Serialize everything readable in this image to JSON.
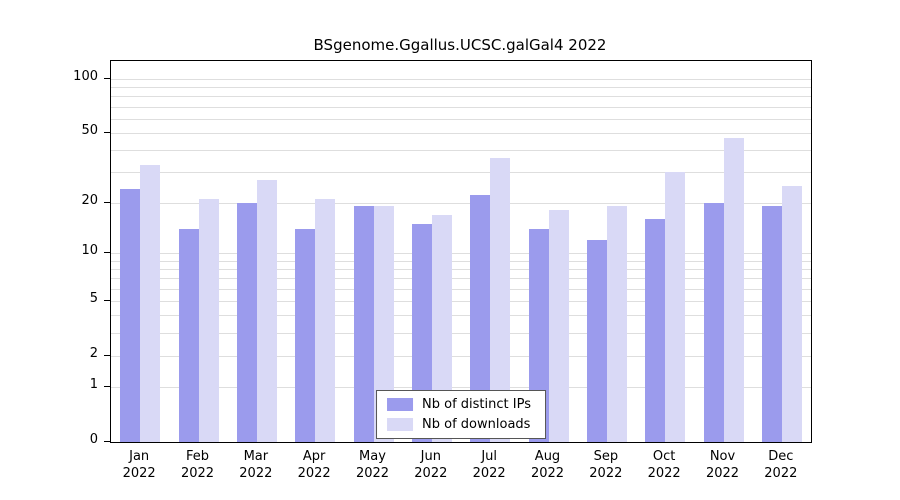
{
  "chart_data": {
    "type": "bar",
    "title": "BSgenome.Ggallus.UCSC.galGal4 2022",
    "categories": [
      "Jan",
      "Feb",
      "Mar",
      "Apr",
      "May",
      "Jun",
      "Jul",
      "Aug",
      "Sep",
      "Oct",
      "Nov",
      "Dec"
    ],
    "year": "2022",
    "series": [
      {
        "name": "Nb of distinct IPs",
        "color": "#9b9bed",
        "values": [
          24,
          14,
          20,
          14,
          19,
          15,
          22,
          14,
          12,
          16,
          20,
          19
        ]
      },
      {
        "name": "Nb of downloads",
        "color": "#d9d9f6",
        "values": [
          33,
          21,
          27,
          21,
          19,
          17,
          36,
          18,
          19,
          30,
          47,
          25
        ]
      }
    ],
    "y_ticks": [
      0,
      1,
      2,
      5,
      10,
      20,
      50,
      100
    ],
    "grid_values": [
      1,
      2,
      3,
      4,
      5,
      6,
      7,
      8,
      9,
      10,
      20,
      30,
      40,
      50,
      60,
      70,
      80,
      90,
      100
    ],
    "y_scale": "log10(1+x)",
    "ylim_top_approx": 126,
    "legend_position": "bottom-center",
    "colors": {
      "axis": "#000000",
      "grid": "#dedede",
      "background": "#ffffff"
    }
  }
}
